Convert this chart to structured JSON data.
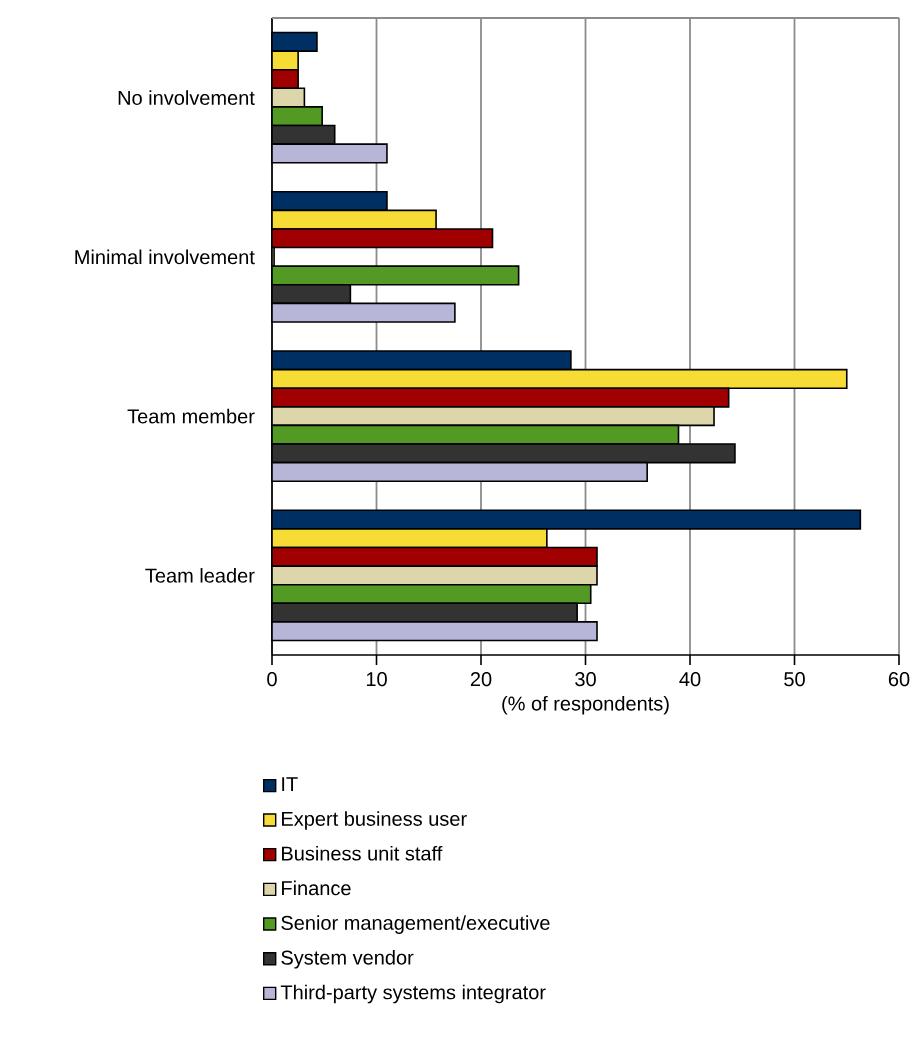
{
  "chart_data": {
    "type": "bar",
    "orientation": "horizontal",
    "xlabel": "(% of respondents)",
    "categories": [
      "No involvement",
      "Minimal involvement",
      "Team member",
      "Team leader"
    ],
    "series": [
      {
        "name": "IT",
        "color": "#002f63",
        "values": [
          4.3,
          11.0,
          28.6,
          56.3
        ]
      },
      {
        "name": "Expert business user",
        "color": "#f7dc35",
        "values": [
          2.5,
          15.7,
          55.0,
          26.3
        ]
      },
      {
        "name": "Business unit staff",
        "color": "#a00000",
        "values": [
          2.5,
          21.1,
          43.7,
          31.1
        ]
      },
      {
        "name": "Finance",
        "color": "#ddd6ab",
        "values": [
          3.1,
          0.2,
          42.3,
          31.1
        ]
      },
      {
        "name": "Senior management/executive",
        "color": "#539a25",
        "values": [
          4.8,
          23.6,
          38.9,
          30.5
        ]
      },
      {
        "name": "System vendor",
        "color": "#333333",
        "values": [
          6.0,
          7.5,
          44.3,
          29.2
        ]
      },
      {
        "name": "Third-party systems integrator",
        "color": "#b7b6d8",
        "values": [
          11.0,
          17.5,
          35.9,
          31.1
        ]
      }
    ],
    "xlim": [
      0,
      60
    ],
    "xticks": [
      0,
      10,
      20,
      30,
      40,
      50,
      60
    ],
    "grid": "x",
    "legend": "bottom"
  }
}
